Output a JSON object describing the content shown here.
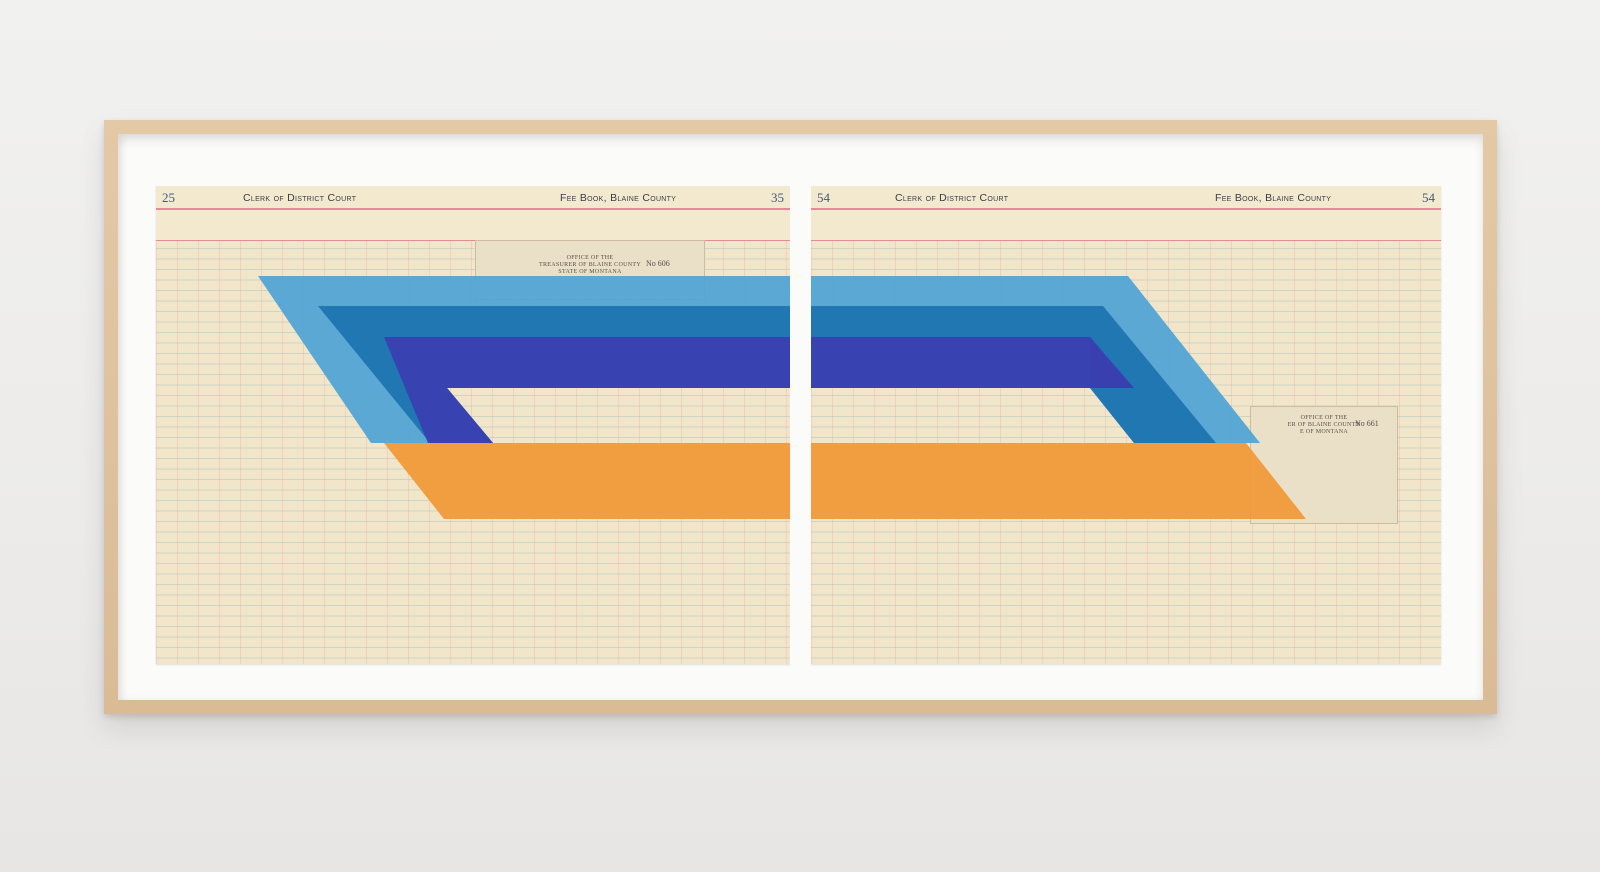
{
  "left_page": {
    "page_number_left": "25",
    "page_number_right": "35",
    "header_left": "Clerk of District Court",
    "header_right": "Fee Book, Blaine County"
  },
  "right_page": {
    "page_number_left": "54",
    "page_number_right": "54",
    "header_left": "Clerk of District Court",
    "header_right": "Fee Book, Blaine County"
  },
  "receipt_left": {
    "line1": "OFFICE OF THE",
    "line2": "TREASURER OF BLAINE COUNTY",
    "line3": "STATE OF MONTANA",
    "number": "No 606"
  },
  "receipt_right": {
    "line1": "OFFICE OF THE",
    "line2": "ER OF BLAINE COUNTY",
    "line3": "E OF MONTANA",
    "number": "No 661"
  },
  "colors": {
    "frame": "#dcc09b",
    "mat": "#fbfbfa",
    "paper": "#f1e6c9",
    "light_blue": "#4ea3d6",
    "teal_blue": "#1f74b0",
    "indigo": "#3a3fb0",
    "orange": "#f09a3a"
  }
}
